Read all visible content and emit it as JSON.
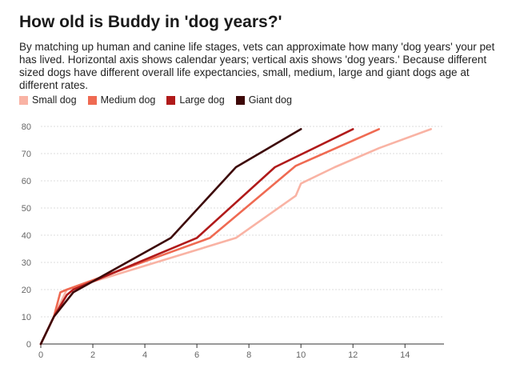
{
  "title": "How old is Buddy in 'dog years?'",
  "subtitle": "By matching up human and canine life stages, vets can approximate how many 'dog years' your pet has lived. Horizontal axis shows calendar years; vertical axis shows 'dog years.' Because different sized dogs have different overall life expectancies, small, medium, large and giant dogs age at different rates.",
  "chart_data": {
    "type": "line",
    "title": "How old is Buddy in 'dog years?'",
    "xlabel": "",
    "ylabel": "",
    "xlim": [
      0,
      15.5
    ],
    "ylim": [
      0,
      80
    ],
    "xticks": [
      0,
      2,
      4,
      6,
      8,
      10,
      12,
      14
    ],
    "yticks": [
      0,
      10,
      20,
      30,
      40,
      50,
      60,
      70,
      80
    ],
    "grid": "horizontal",
    "legend": "top-left",
    "series": [
      {
        "name": "Small dog",
        "color": "#f9b3a4",
        "x": [
          0,
          0.5,
          0.75,
          1,
          7.5,
          9.8,
          10,
          11.3,
          13,
          15
        ],
        "y": [
          0,
          10,
          15,
          20,
          39,
          54.5,
          59,
          65,
          72,
          79
        ]
      },
      {
        "name": "Medium dog",
        "color": "#ef6a52",
        "x": [
          0,
          0.5,
          0.75,
          1,
          6.5,
          9.8,
          13
        ],
        "y": [
          0,
          10,
          19,
          20,
          39,
          65.5,
          79
        ]
      },
      {
        "name": "Large dog",
        "color": "#b01a1a",
        "x": [
          0,
          0.5,
          1,
          1.25,
          6,
          9,
          12
        ],
        "y": [
          0,
          10,
          18,
          20,
          39,
          65,
          79
        ]
      },
      {
        "name": "Giant dog",
        "color": "#3d0808",
        "x": [
          0,
          0.5,
          1.25,
          5,
          7.5,
          10
        ],
        "y": [
          0,
          10,
          19,
          39,
          65,
          79
        ]
      }
    ]
  }
}
